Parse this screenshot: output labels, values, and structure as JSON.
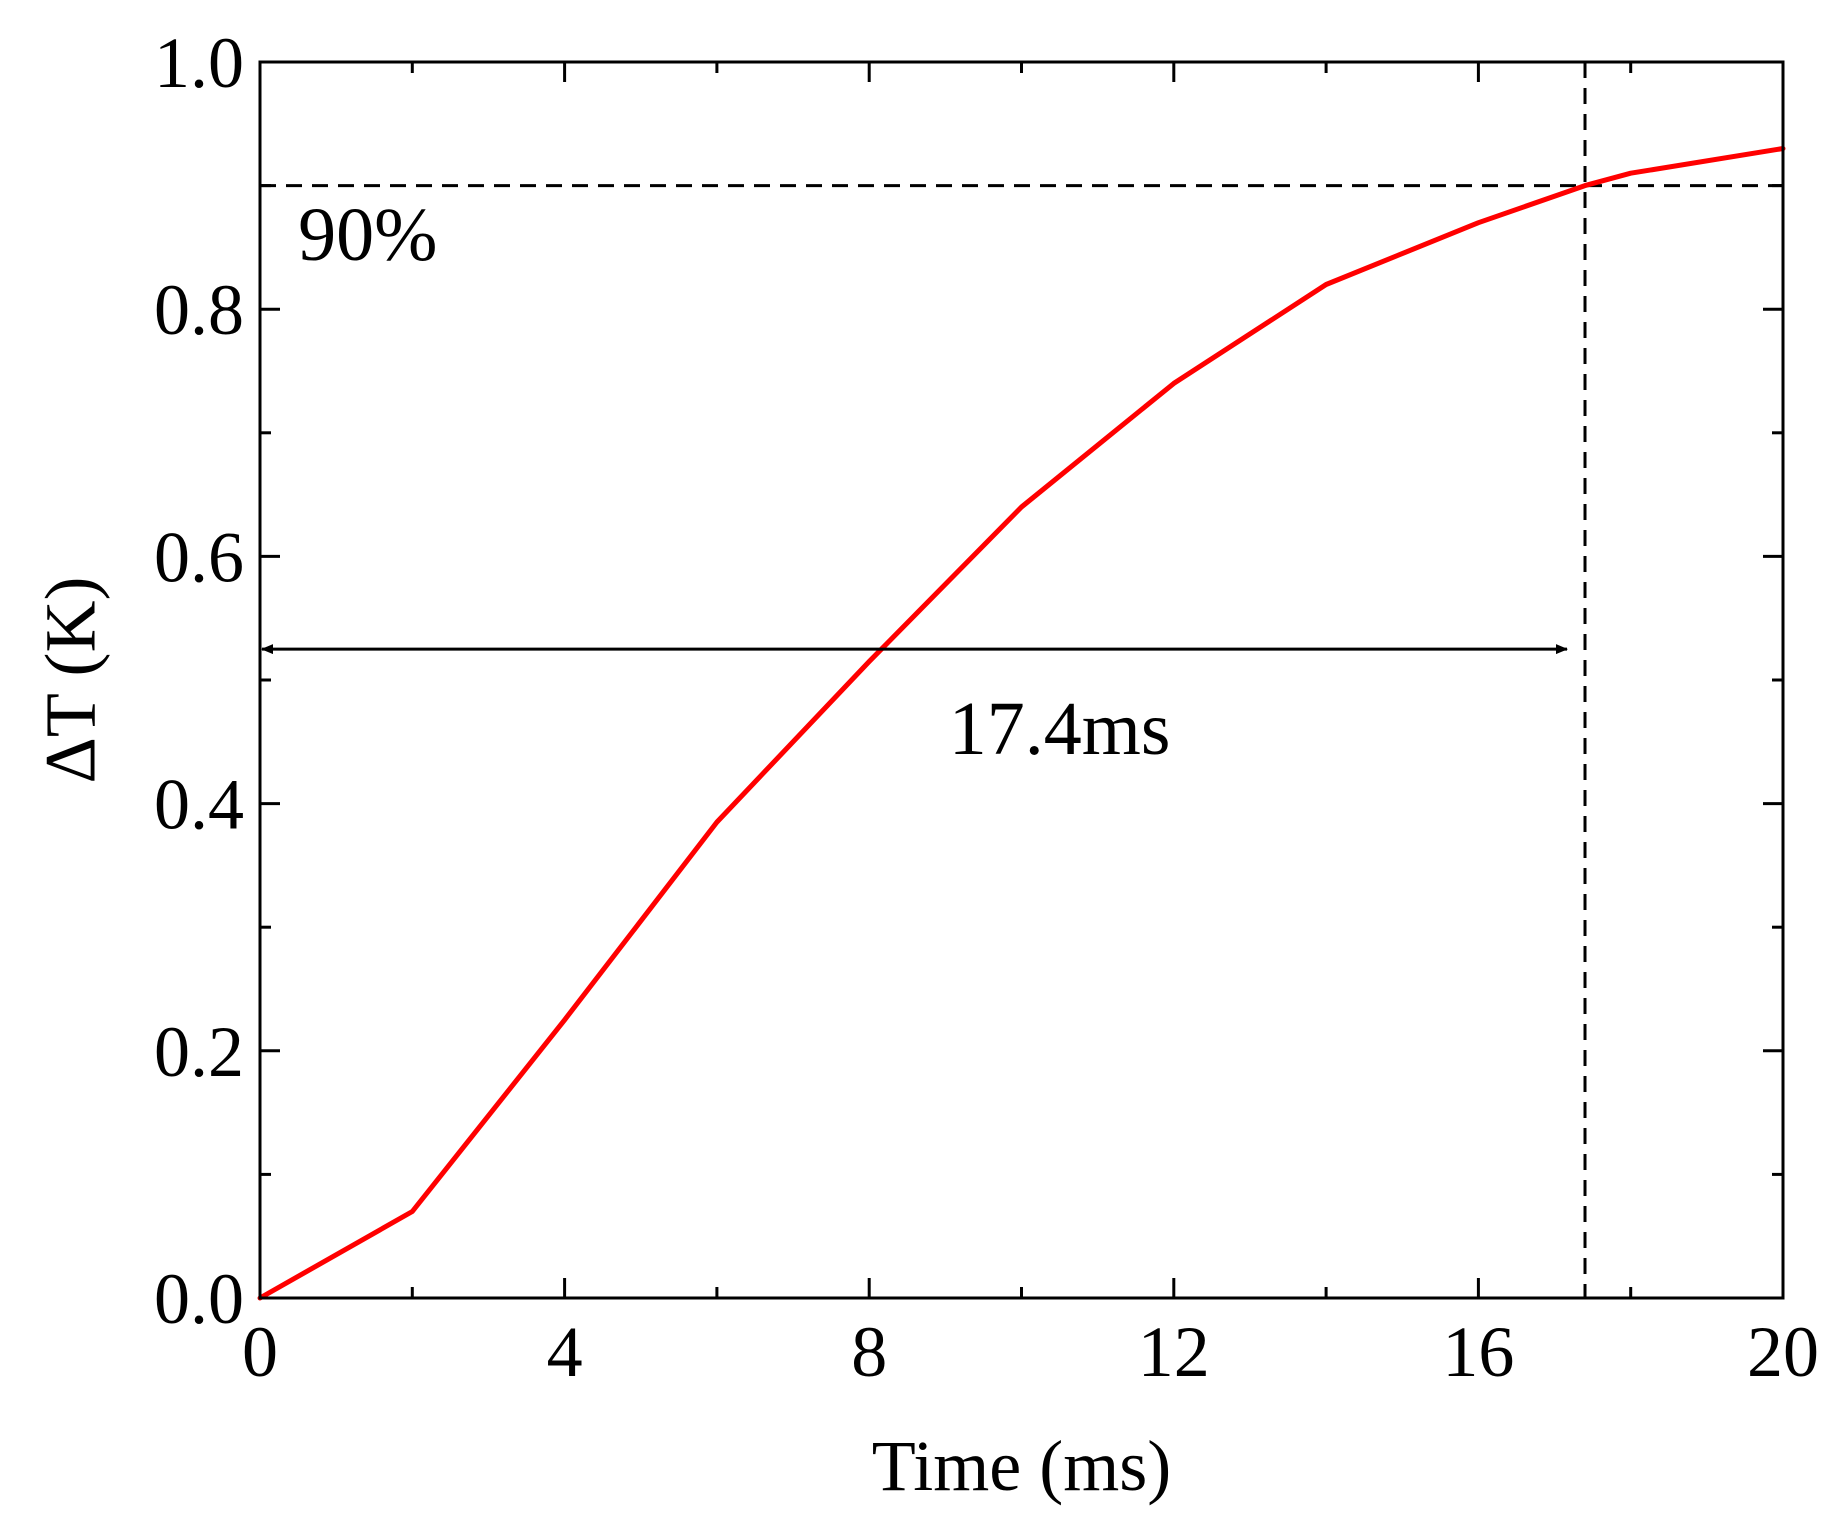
{
  "chart_data": {
    "type": "line",
    "xlabel": "Time (ms)",
    "ylabel": "ΔT (K)",
    "xlim": [
      0,
      20
    ],
    "ylim": [
      0,
      1.0
    ],
    "x_ticks": [
      0,
      4,
      8,
      12,
      16,
      20
    ],
    "x_tick_labels": [
      "0",
      "4",
      "8",
      "12",
      "16",
      "20"
    ],
    "y_ticks": [
      0.0,
      0.2,
      0.4,
      0.6,
      0.8,
      1.0
    ],
    "y_tick_labels": [
      "0.0",
      "0.2",
      "0.4",
      "0.6",
      "0.8",
      "1.0"
    ],
    "x_minor_step": 2,
    "y_minor_step": 0.1,
    "grid": false,
    "series": [
      {
        "color": "#ff0000",
        "x": [
          0,
          2,
          4,
          6,
          8,
          10,
          12,
          14,
          16,
          17.4,
          18,
          20
        ],
        "y": [
          0.0,
          0.07,
          0.225,
          0.385,
          0.515,
          0.64,
          0.74,
          0.82,
          0.87,
          0.9,
          0.91,
          0.93
        ]
      }
    ],
    "reference_lines": [
      {
        "orientation": "horizontal",
        "value": 0.9,
        "style": "dashed",
        "color": "#000000"
      },
      {
        "orientation": "vertical",
        "value": 17.4,
        "style": "dashed",
        "color": "#000000"
      }
    ],
    "annotations": [
      {
        "text": "90%",
        "x": 0.5,
        "y": 0.84
      },
      {
        "text": "17.4ms",
        "x": 10.5,
        "y": 0.44
      }
    ],
    "double_arrow": {
      "x_start": 0,
      "x_end": 17.4,
      "y": 0.525,
      "color": "#000000"
    }
  }
}
